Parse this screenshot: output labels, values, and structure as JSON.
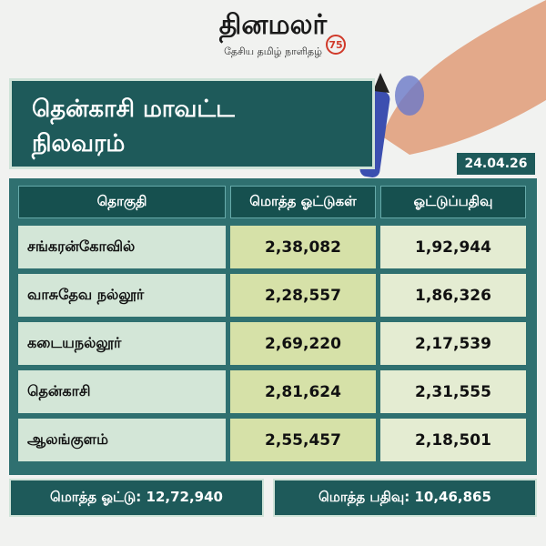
{
  "header": {
    "logo": "தினமலர்",
    "tagline": "தேசிய தமிழ் நாளிதழ்",
    "badge": "75"
  },
  "title": {
    "line1": "தென்காசி மாவட்ட",
    "line2": "நிலவரம்"
  },
  "date": "24.04.26",
  "table": {
    "columns": [
      "தொகுதி",
      "மொத்த ஓட்டுகள்",
      "ஓட்டுப்பதிவு"
    ],
    "rows": [
      [
        "சங்கரன்கோவில்",
        "2,38,082",
        "1,92,944"
      ],
      [
        "வாசுதேவ நல்லூர்",
        "2,28,557",
        "1,86,326"
      ],
      [
        "கடையநல்லூர்",
        "2,69,220",
        "2,17,539"
      ],
      [
        "தென்காசி",
        "2,81,624",
        "2,31,555"
      ],
      [
        "ஆலங்குளம்",
        "2,55,457",
        "2,18,501"
      ]
    ]
  },
  "footer": {
    "total_votes": "மொத்த ஓட்டு: 12,72,940",
    "total_polled": "மொத்த பதிவு: 10,46,865"
  }
}
